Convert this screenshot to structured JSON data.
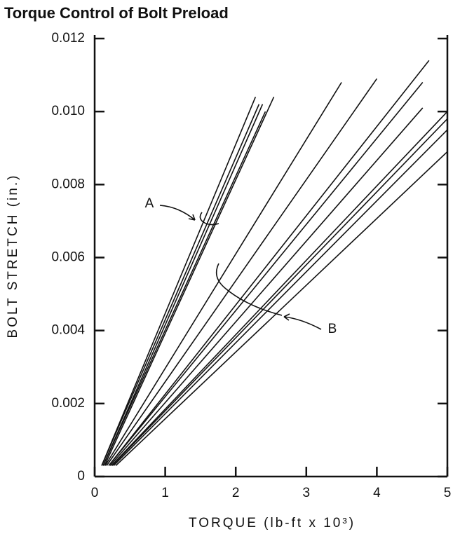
{
  "chart_data": {
    "type": "line",
    "title": "Torque Control of Bolt Preload",
    "x_label": "TORQUE (lb-ft x 10³)",
    "y_label": "BOLT STRETCH  (in.)",
    "xlim": [
      0,
      5
    ],
    "ylim": [
      0,
      0.012
    ],
    "xticks": [
      0,
      1,
      2,
      3,
      4,
      5
    ],
    "yticks": [
      0,
      0.002,
      0.004,
      0.006,
      0.008,
      {
        "value": 0.01,
        "label": "0.010"
      },
      0.012
    ],
    "color": "#111111",
    "annotations": [
      "A",
      "B"
    ],
    "series": [
      {
        "x": [
          0.1,
          2.28
        ],
        "values": [
          0.0003,
          0.0104
        ]
      },
      {
        "x": [
          0.1,
          2.33
        ],
        "values": [
          0.0003,
          0.0102
        ]
      },
      {
        "x": [
          0.12,
          2.38
        ],
        "values": [
          0.0003,
          0.0102
        ]
      },
      {
        "x": [
          0.12,
          2.42
        ],
        "values": [
          0.0003,
          0.01
        ]
      },
      {
        "x": [
          0.14,
          2.54
        ],
        "values": [
          0.0003,
          0.0104
        ]
      },
      {
        "x": [
          0.15,
          3.5
        ],
        "values": [
          0.0003,
          0.0108
        ]
      },
      {
        "x": [
          0.17,
          4.0
        ],
        "values": [
          0.0003,
          0.0109
        ]
      },
      {
        "x": [
          0.2,
          4.74
        ],
        "values": [
          0.0003,
          0.0114
        ]
      },
      {
        "x": [
          0.2,
          4.65
        ],
        "values": [
          0.0003,
          0.0108
        ]
      },
      {
        "x": [
          0.22,
          4.65
        ],
        "values": [
          0.0003,
          0.0101
        ]
      },
      {
        "x": [
          0.24,
          5.0
        ],
        "values": [
          0.0003,
          0.01
        ]
      },
      {
        "x": [
          0.25,
          5.0
        ],
        "values": [
          0.0003,
          0.0098
        ]
      },
      {
        "x": [
          0.27,
          5.0
        ],
        "values": [
          0.0003,
          0.0095
        ]
      },
      {
        "x": [
          0.3,
          5.0
        ],
        "values": [
          0.0003,
          0.0089
        ]
      }
    ]
  }
}
